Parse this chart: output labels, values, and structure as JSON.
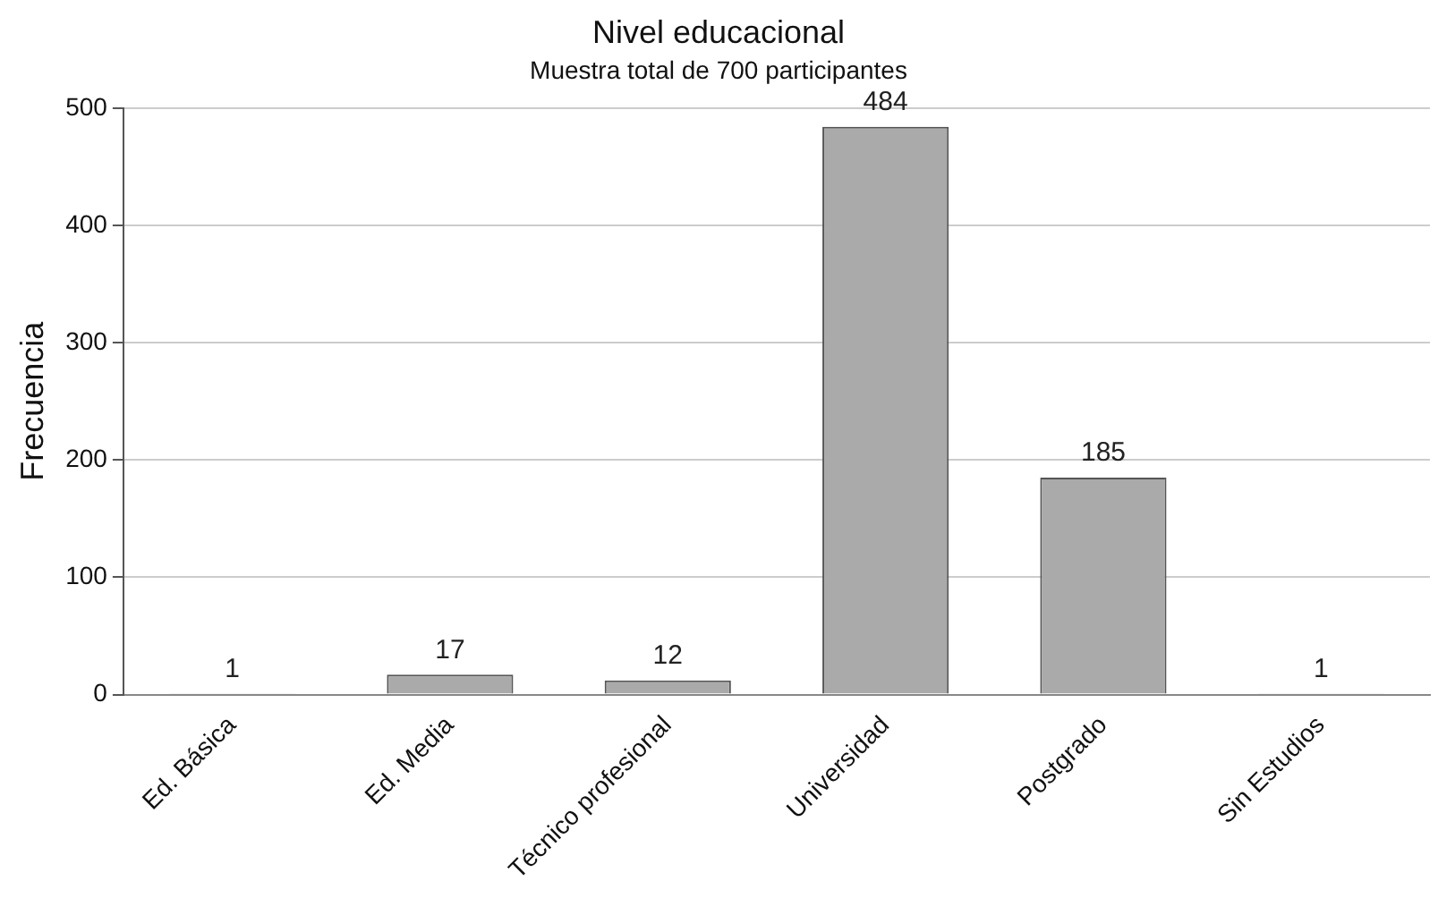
{
  "chart_data": {
    "type": "bar",
    "title": "Nivel educacional",
    "subtitle": "Muestra total de 700 participantes",
    "ylabel": "Frecuencia",
    "categories": [
      "Ed. Básica",
      "Ed. Media",
      "Técnico profesional",
      "Universidad",
      "Postgrado",
      "Sin Estudios"
    ],
    "values": [
      1,
      17,
      12,
      484,
      185,
      1
    ],
    "color": "#aaaaaa",
    "ylim": [
      0,
      500
    ],
    "yticks": [
      0,
      100,
      200,
      300,
      400,
      500
    ],
    "grid": "y",
    "data_labels": true,
    "legend": false
  }
}
